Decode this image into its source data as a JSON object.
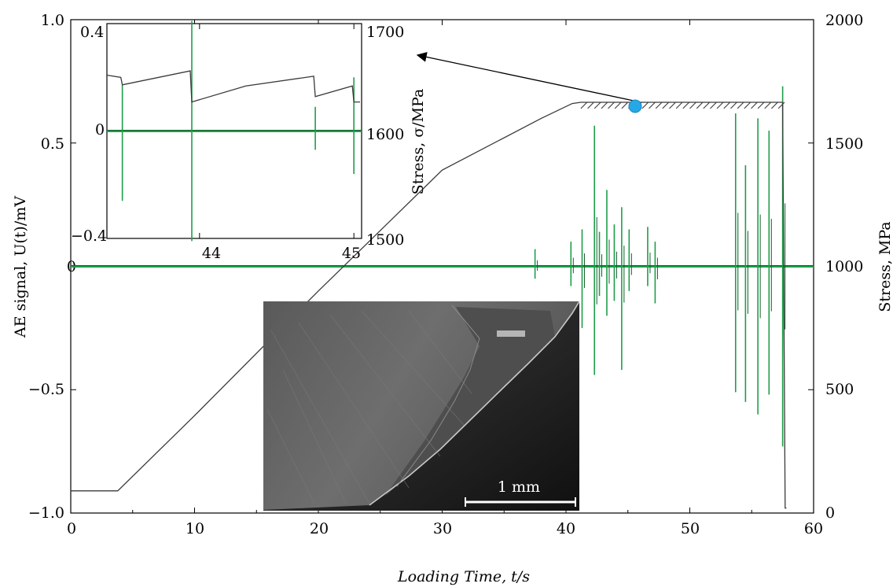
{
  "chart_data": [
    {
      "type": "line",
      "xlabel": "Loading Time, t/s",
      "ylabel_left": "AE signal, U(t)/mV",
      "ylabel_right": "Stress, MPa",
      "xlim": [
        0,
        60
      ],
      "ylim_left": [
        -1.0,
        1.0
      ],
      "ylim_right": [
        0,
        2000
      ],
      "x_ticks": [
        "0",
        "10",
        "20",
        "30",
        "40",
        "50",
        "60"
      ],
      "y_left_ticks": [
        "−1.0",
        "−0.5",
        "0",
        "0.5",
        "1.0"
      ],
      "y_right_ticks": [
        "0",
        "500",
        "1000",
        "1500",
        "2000"
      ],
      "grid": false,
      "series": [
        {
          "role": "stress",
          "axis": "right",
          "color": "#3a3a3a",
          "x": [
            0,
            3.8,
            10,
            20,
            30,
            38,
            40.5,
            41.2,
            45.5,
            57.2,
            57.5,
            57.7,
            57.8
          ],
          "values": [
            90,
            90,
            395,
            900,
            1390,
            1600,
            1660,
            1665,
            1665,
            1665,
            1665,
            20,
            20
          ]
        },
        {
          "role": "ae_signal",
          "axis": "left",
          "color": "#1e9e4a",
          "spikes": [
            {
              "t": 37.5,
              "min": -0.05,
              "max": 0.07
            },
            {
              "t": 40.4,
              "min": -0.08,
              "max": 0.1
            },
            {
              "t": 41.3,
              "min": -0.25,
              "max": 0.15
            },
            {
              "t": 42.3,
              "min": -0.44,
              "max": 0.57
            },
            {
              "t": 42.7,
              "min": -0.12,
              "max": 0.14
            },
            {
              "t": 43.3,
              "min": -0.2,
              "max": 0.31
            },
            {
              "t": 43.9,
              "min": -0.14,
              "max": 0.17
            },
            {
              "t": 44.5,
              "min": -0.42,
              "max": 0.24
            },
            {
              "t": 45.1,
              "min": -0.1,
              "max": 0.15
            },
            {
              "t": 46.6,
              "min": -0.08,
              "max": 0.16
            },
            {
              "t": 47.2,
              "min": -0.15,
              "max": 0.1
            },
            {
              "t": 53.7,
              "min": -0.51,
              "max": 0.62
            },
            {
              "t": 54.5,
              "min": -0.55,
              "max": 0.41
            },
            {
              "t": 55.5,
              "min": -0.6,
              "max": 0.6
            },
            {
              "t": 56.4,
              "min": -0.52,
              "max": 0.55
            },
            {
              "t": 57.5,
              "min": -0.73,
              "max": 0.73
            }
          ]
        }
      ]
    },
    {
      "type": "line",
      "role": "inset",
      "xlabel": "",
      "ylabel_left": "",
      "ylabel_right": "Stress, σ/MPa",
      "xlim": [
        43.4,
        45.05
      ],
      "ylim_left": [
        -0.4,
        0.4
      ],
      "ylim_right": [
        1500,
        1700
      ],
      "x_ticks": [
        "44",
        "45"
      ],
      "y_left_ticks": [
        "0.4",
        "0",
        "−0.4"
      ],
      "y_right_ticks": [
        "1700",
        "1600",
        "1500"
      ],
      "stress_sawtooth": [
        {
          "x": 43.4,
          "v": 1652
        },
        {
          "x": 43.49,
          "v": 1650
        },
        {
          "x": 43.5,
          "v": 1643
        },
        {
          "x": 43.94,
          "v": 1656
        },
        {
          "x": 43.95,
          "v": 1627
        },
        {
          "x": 44.3,
          "v": 1642
        },
        {
          "x": 44.74,
          "v": 1651
        },
        {
          "x": 44.75,
          "v": 1632
        },
        {
          "x": 44.99,
          "v": 1642
        },
        {
          "x": 45.0,
          "v": 1627
        },
        {
          "x": 45.04,
          "v": 1627
        }
      ],
      "ae_spikes": [
        {
          "t": 43.5,
          "min": -0.26,
          "max": 0.17
        },
        {
          "t": 43.95,
          "min": -0.41,
          "max": 0.41
        },
        {
          "t": 44.75,
          "min": -0.07,
          "max": 0.09
        },
        {
          "t": 45.0,
          "min": -0.16,
          "max": 0.2
        }
      ]
    }
  ],
  "image_inset": {
    "scale_bar_label": "1 mm"
  },
  "marker": {
    "t": 45.5,
    "stress": 1665,
    "color": "#26a8e6"
  },
  "arrow": {
    "from_t": 45.5,
    "from_stress": 1665,
    "to_t_inset_label": "inset"
  }
}
